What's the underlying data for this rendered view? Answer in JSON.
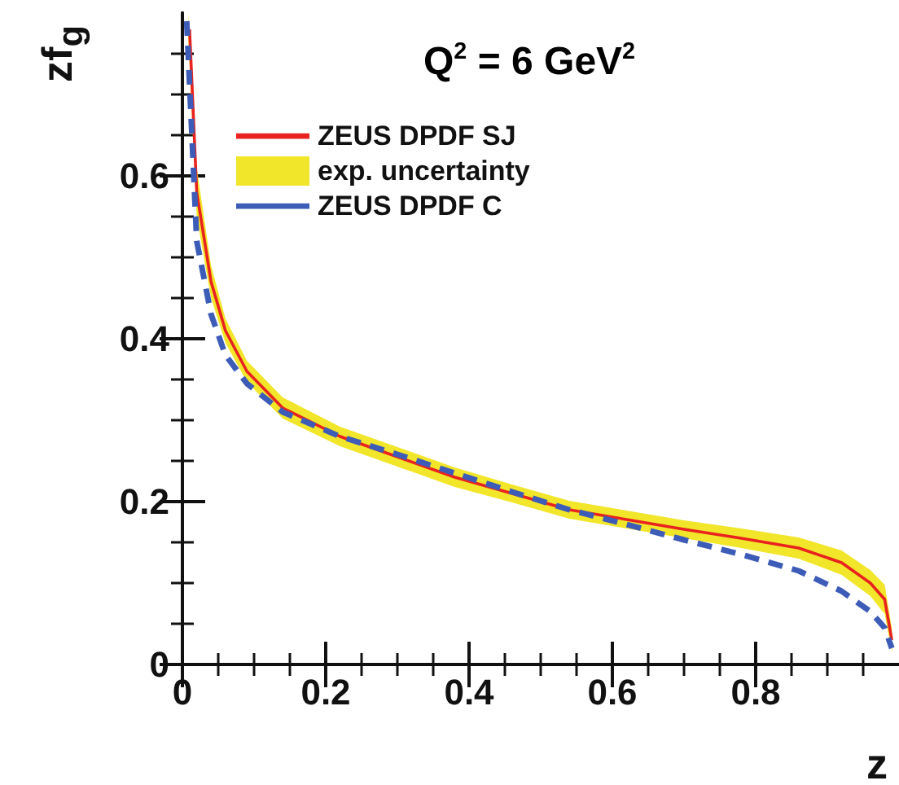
{
  "chart_data": {
    "type": "line",
    "xlabel": "z",
    "ylabel": "zf$_{g}$",
    "annotations": [
      "Q$^{2}$ = 6 GeV$^{2}$"
    ],
    "xlim": [
      0,
      1
    ],
    "ylim": [
      0,
      0.8
    ],
    "xticks": [
      0,
      0.2,
      0.4,
      0.6,
      0.8
    ],
    "yticks": [
      0,
      0.2,
      0.4,
      0.6
    ],
    "grid": false,
    "legend": "top left",
    "series": [
      {
        "name": "exp. uncertainty",
        "type": "area",
        "color": "#f2e62a",
        "x": [
          0.008,
          0.02,
          0.04,
          0.06,
          0.09,
          0.14,
          0.22,
          0.3,
          0.38,
          0.46,
          0.54,
          0.62,
          0.7,
          0.78,
          0.86,
          0.92,
          0.96,
          0.98,
          0.99
        ],
        "values": [
          null,
          null,
          null,
          null,
          null,
          null,
          null,
          null,
          null,
          null,
          null,
          null,
          null,
          null,
          null,
          null,
          null,
          null,
          null
        ],
        "lower": [
          0.77,
          0.55,
          0.45,
          0.395,
          0.347,
          0.302,
          0.268,
          0.243,
          0.218,
          0.199,
          0.179,
          0.167,
          0.155,
          0.143,
          0.13,
          0.11,
          0.084,
          0.062,
          0.015
        ],
        "upper": [
          0.8,
          0.61,
          0.49,
          0.425,
          0.373,
          0.328,
          0.292,
          0.267,
          0.242,
          0.221,
          0.201,
          0.189,
          0.177,
          0.167,
          0.156,
          0.14,
          0.116,
          0.098,
          0.045
        ]
      },
      {
        "name": "ZEUS DPDF SJ",
        "type": "line",
        "color": "#e8231f",
        "line_style": "solid",
        "x": [
          0.01,
          0.02,
          0.04,
          0.06,
          0.09,
          0.14,
          0.22,
          0.3,
          0.38,
          0.46,
          0.54,
          0.62,
          0.7,
          0.78,
          0.86,
          0.92,
          0.96,
          0.98,
          0.99
        ],
        "values": [
          0.78,
          0.58,
          0.47,
          0.41,
          0.36,
          0.315,
          0.28,
          0.255,
          0.23,
          0.21,
          0.19,
          0.178,
          0.166,
          0.155,
          0.143,
          0.125,
          0.1,
          0.08,
          0.03
        ]
      },
      {
        "name": "ZEUS DPDF C",
        "type": "line",
        "color": "#3d5cb8",
        "line_style": "dashed",
        "x": [
          0.006,
          0.02,
          0.04,
          0.06,
          0.09,
          0.14,
          0.22,
          0.3,
          0.38,
          0.46,
          0.54,
          0.62,
          0.7,
          0.78,
          0.86,
          0.92,
          0.96,
          0.98,
          0.99
        ],
        "values": [
          0.79,
          0.52,
          0.43,
          0.38,
          0.345,
          0.31,
          0.28,
          0.258,
          0.235,
          0.212,
          0.19,
          0.172,
          0.153,
          0.135,
          0.115,
          0.09,
          0.065,
          0.045,
          0.02
        ]
      }
    ]
  }
}
